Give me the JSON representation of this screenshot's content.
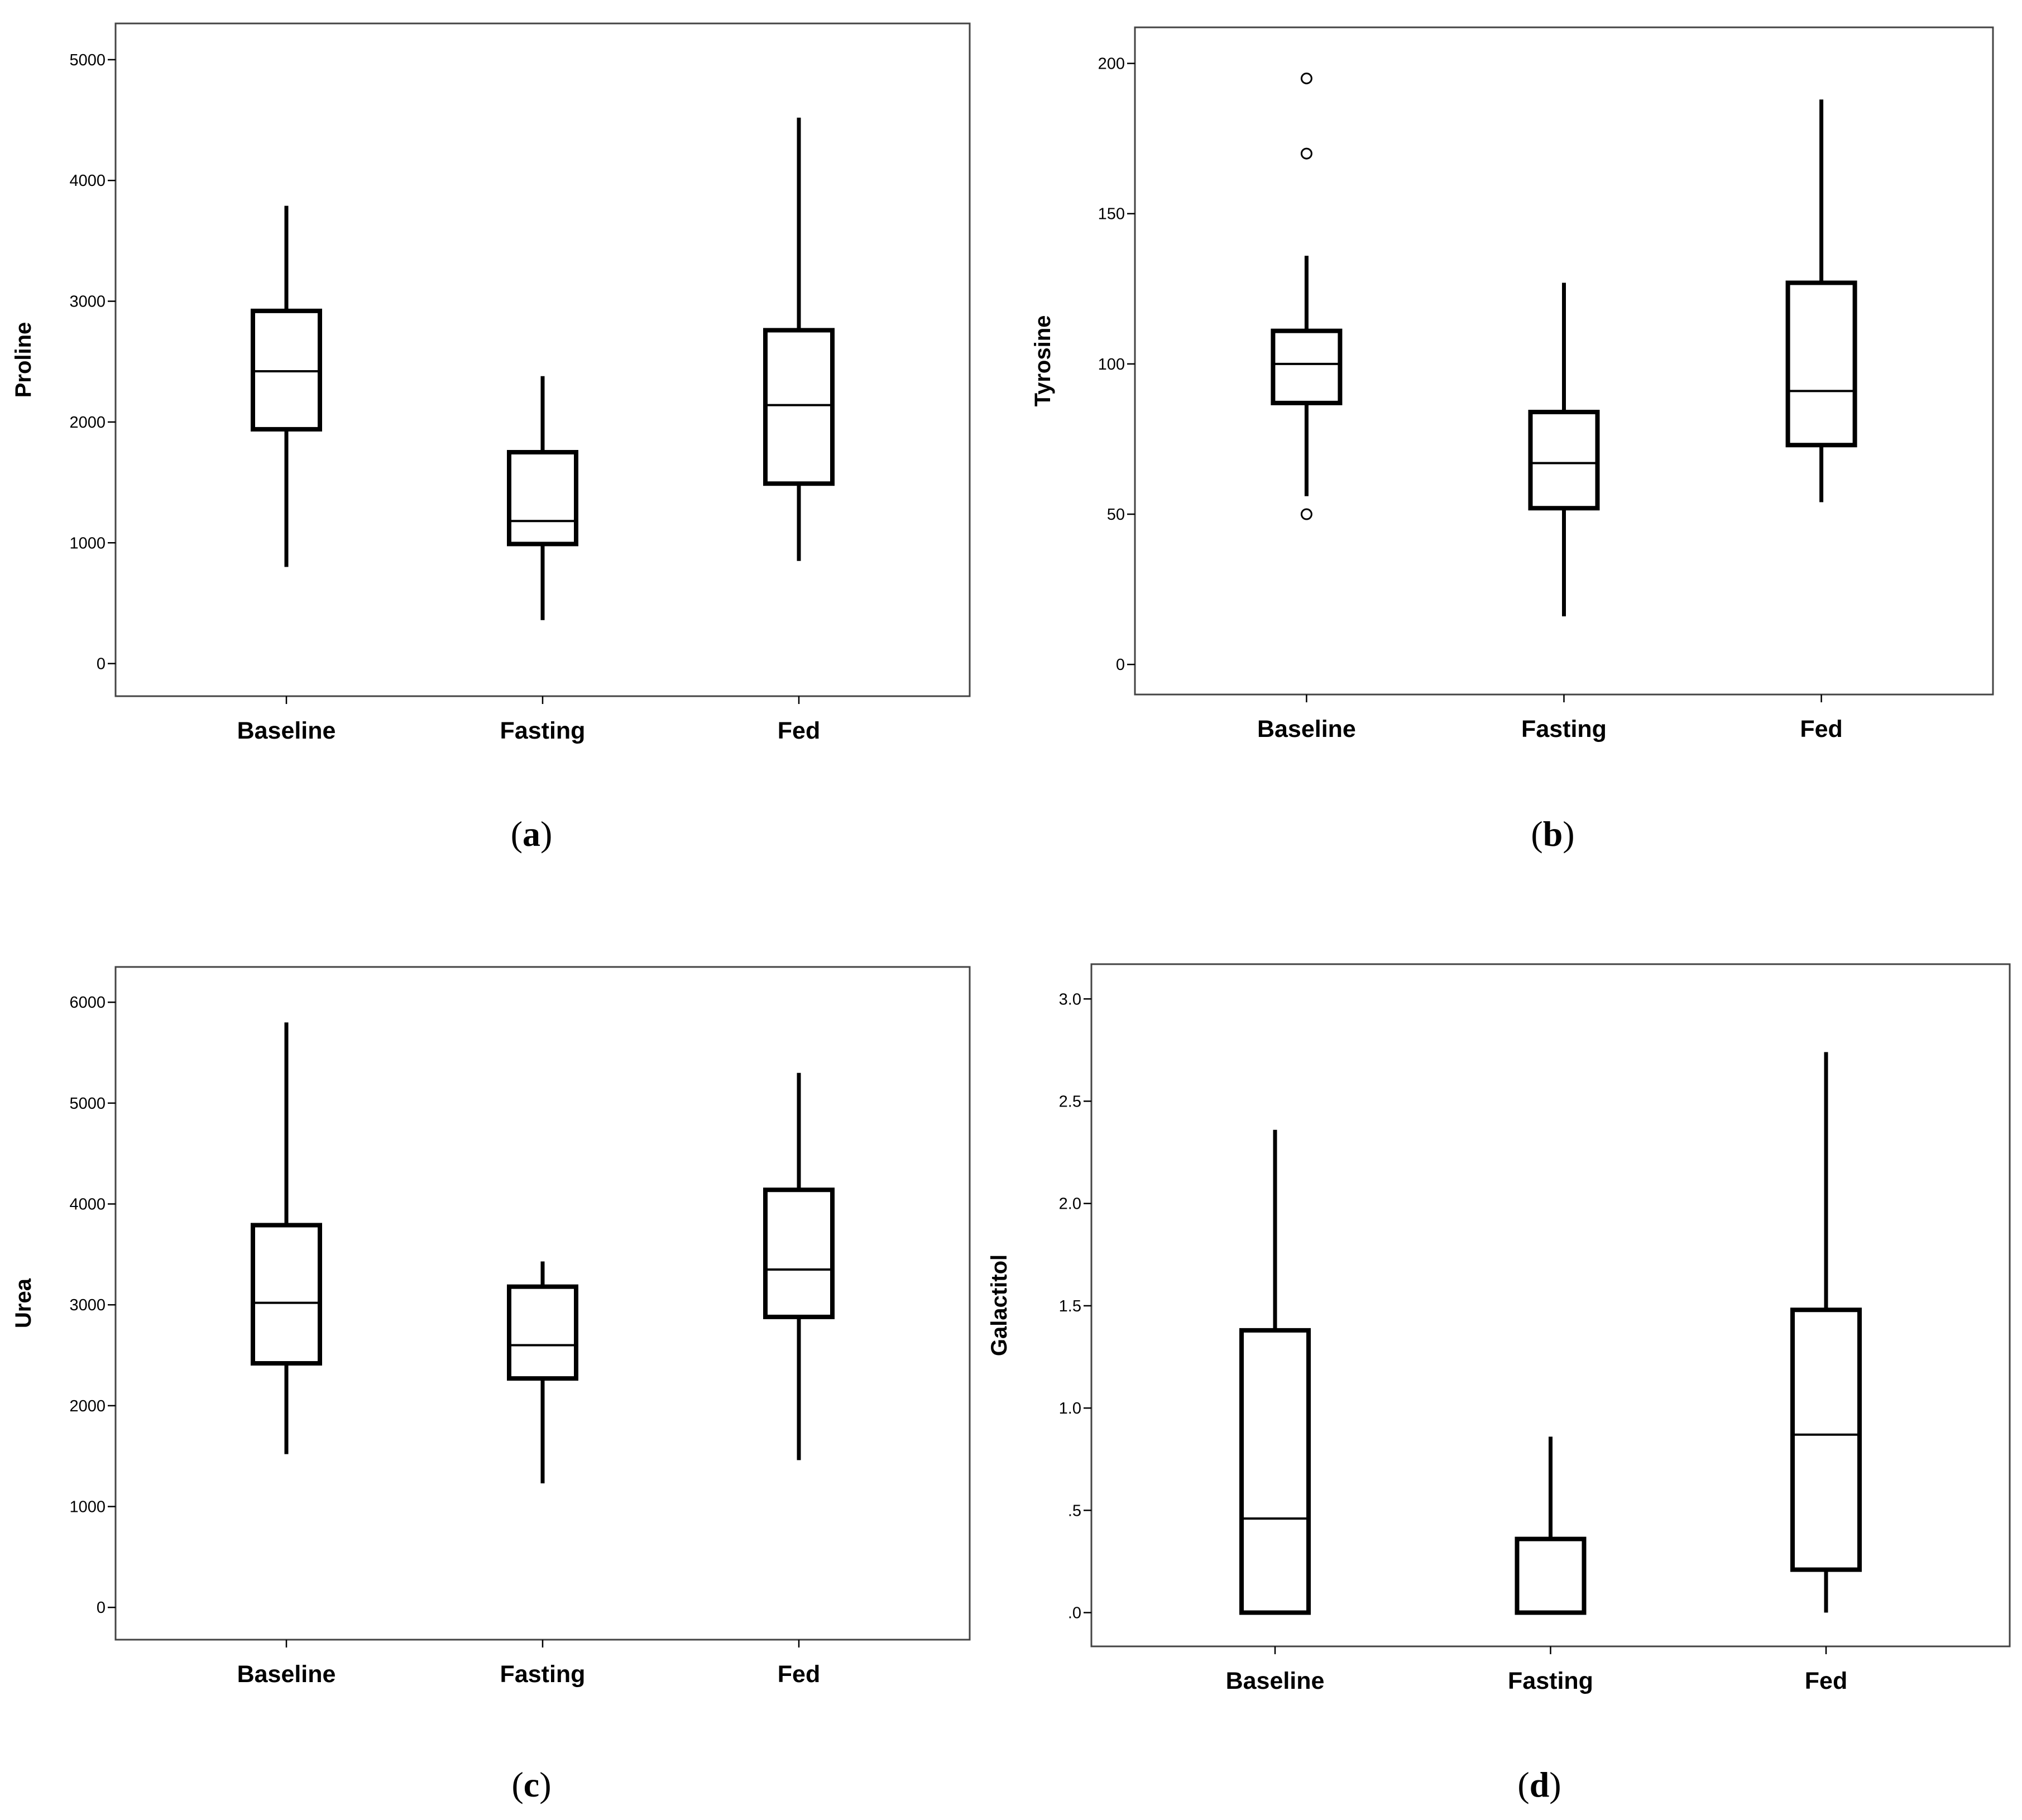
{
  "chart_data": [
    {
      "panel": "(a)",
      "panel_letter": "a",
      "type": "box",
      "ylabel": "Proline",
      "categories": [
        "Baseline",
        "Fasting",
        "Fed"
      ],
      "ylim": [
        -270,
        5300
      ],
      "yticks": [
        0,
        1000,
        2000,
        3000,
        4000,
        5000
      ],
      "ytick_labels": [
        "0",
        "1000",
        "2000",
        "3000",
        "4000",
        "5000"
      ],
      "boxes": [
        {
          "min": 800,
          "q1": 1940,
          "median": 2420,
          "q3": 2920,
          "max": 3790,
          "outliers": []
        },
        {
          "min": 360,
          "q1": 990,
          "median": 1180,
          "q3": 1750,
          "max": 2380,
          "outliers": []
        },
        {
          "min": 850,
          "q1": 1490,
          "median": 2140,
          "q3": 2760,
          "max": 4520,
          "outliers": []
        }
      ]
    },
    {
      "panel": "(b)",
      "panel_letter": "b",
      "type": "box",
      "ylabel": "Tyrosine",
      "categories": [
        "Baseline",
        "Fasting",
        "Fed"
      ],
      "ylim": [
        -10,
        212
      ],
      "yticks": [
        0,
        50,
        100,
        150,
        200
      ],
      "ytick_labels": [
        "0",
        "50",
        "100",
        "150",
        "200"
      ],
      "boxes": [
        {
          "min": 56,
          "q1": 87,
          "median": 100,
          "q3": 111,
          "max": 136,
          "outliers": [
            50,
            170,
            195
          ]
        },
        {
          "min": 16,
          "q1": 52,
          "median": 67,
          "q3": 84,
          "max": 127,
          "outliers": []
        },
        {
          "min": 54,
          "q1": 73,
          "median": 91,
          "q3": 127,
          "max": 188,
          "outliers": []
        }
      ]
    },
    {
      "panel": "(c)",
      "panel_letter": "c",
      "type": "box",
      "ylabel": "Urea",
      "categories": [
        "Baseline",
        "Fasting",
        "Fed"
      ],
      "ylim": [
        -320,
        6350
      ],
      "yticks": [
        0,
        1000,
        2000,
        3000,
        4000,
        5000,
        6000
      ],
      "ytick_labels": [
        "0",
        "1000",
        "2000",
        "3000",
        "4000",
        "5000",
        "6000"
      ],
      "boxes": [
        {
          "min": 1520,
          "q1": 2420,
          "median": 3020,
          "q3": 3790,
          "max": 5800,
          "outliers": []
        },
        {
          "min": 1230,
          "q1": 2270,
          "median": 2600,
          "q3": 3180,
          "max": 3430,
          "outliers": []
        },
        {
          "min": 1460,
          "q1": 2880,
          "median": 3350,
          "q3": 4140,
          "max": 5300,
          "outliers": []
        }
      ]
    },
    {
      "panel": "(d)",
      "panel_letter": "d",
      "type": "box",
      "ylabel": "Galactitol",
      "categories": [
        "Baseline",
        "Fasting",
        "Fed"
      ],
      "ylim": [
        -0.165,
        3.17
      ],
      "yticks": [
        0.0,
        0.5,
        1.0,
        1.5,
        2.0,
        2.5,
        3.0
      ],
      "ytick_labels": [
        ".0",
        ".5",
        "1.0",
        "1.5",
        "2.0",
        "2.5",
        "3.0"
      ],
      "boxes": [
        {
          "min": 0.0,
          "q1": 0.0,
          "median": 0.46,
          "q3": 1.38,
          "max": 2.36,
          "outliers": []
        },
        {
          "min": 0.0,
          "q1": 0.0,
          "median": 0.0,
          "q3": 0.36,
          "max": 0.86,
          "outliers": []
        },
        {
          "min": 0.0,
          "q1": 0.21,
          "median": 0.87,
          "q3": 1.48,
          "max": 2.74,
          "outliers": []
        }
      ]
    }
  ]
}
